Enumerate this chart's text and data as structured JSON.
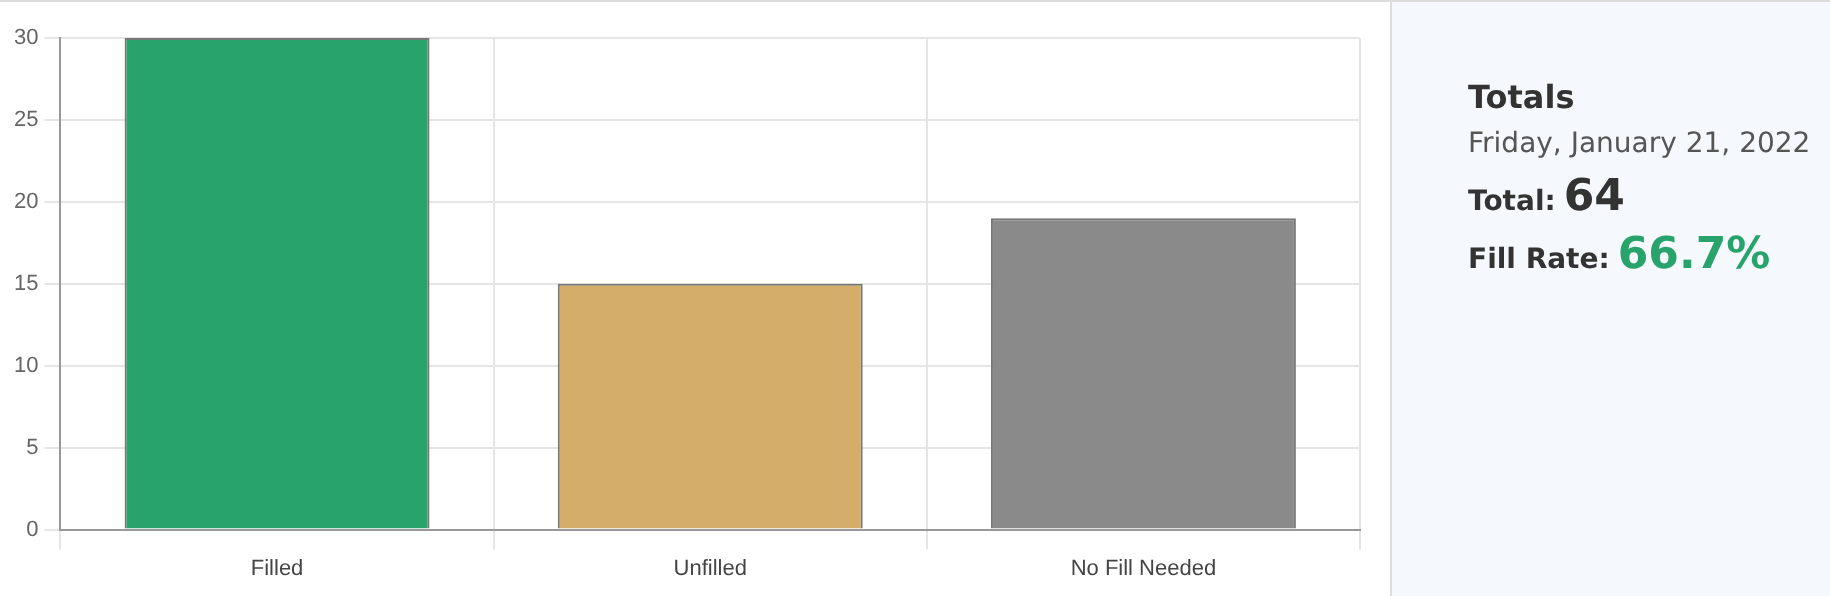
{
  "chart_data": [
    {
      "type": "bar",
      "categories": [
        "Filled",
        "Unfilled",
        "No Fill Needed"
      ],
      "values": [
        30,
        15,
        19
      ],
      "colors": [
        "#27a36b",
        "#d4ad6a",
        "#8a8a8a"
      ],
      "ylim": [
        0,
        30
      ],
      "yticks": [
        0,
        5,
        10,
        15,
        20,
        25,
        30
      ],
      "grid": true,
      "legend": false
    },
    {
      "type": "other",
      "title": "Totals",
      "annotations": [
        "Friday, January 21, 2022",
        "Total:",
        "64",
        "Fill Rate:",
        "66.7%"
      ]
    }
  ]
}
